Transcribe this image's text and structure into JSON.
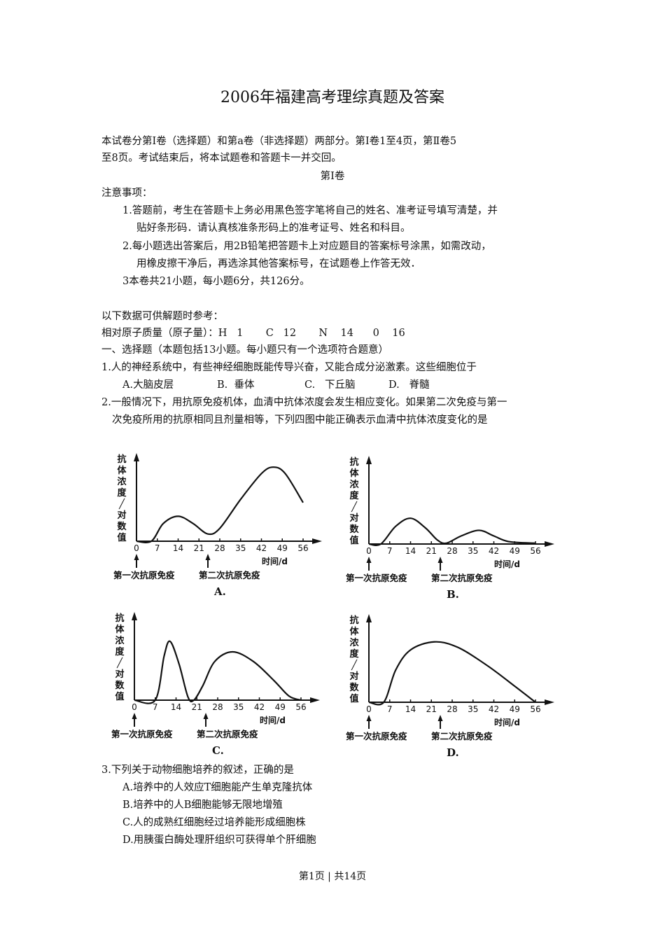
{
  "title": "2006年福建高考理综真题及答案",
  "intro": [
    "本试卷分第Ⅰ卷（选择题）和第a卷（非选择题）两部分。第Ⅰ卷1至4页，第Ⅱ卷5",
    "至8页。考试结束后，将本试题卷和答题卡一并交回。"
  ],
  "section_heading": "第Ⅰ卷",
  "notice_heading": "注意事项：",
  "notices": [
    "1.答题前，考生在答题卡上务必用黑色签字笔将自己的姓名、准考证号填写清楚，并",
    "贴好条形码．请认真核准条形码上的准考证号、姓名和科目。",
    "2.每小题选出答案后，用2B铅笔把答题卡上对应题目的答案标号涂黑，如需改动，",
    "用橡皮擦干净后，再选涂其他答案标号，在试题卷上作答无效．",
    "3本卷共21小题，每小题6分，共126分。"
  ],
  "ref_heading": "以下数据可供解题时参考：",
  "atomic_mass": "相对原子质量（原子量）：H   1       C   12       N    14      0    16",
  "part1_heading": "一、选择题（本题包括13小题。每小题只有一个选项符合题意）",
  "q1": {
    "stem": "1.人的神经系统中，有些神经细胞既能传导兴奋，又能合成分泌激素。这些细胞位于",
    "options": [
      "A.大脑皮层",
      "B.  垂体",
      "C.   下丘脑",
      "D.   脊髓"
    ]
  },
  "q2": {
    "stem": [
      "2.一般情况下，用抗原免疫机体，血清中抗体浓度会发生相应变化。如果第二次免疫与第一",
      "次免疫所用的抗原相同且剂量相等，下列四图中能正确表示血清中抗体浓度变化的是"
    ],
    "charts": [
      {
        "caption": "A.",
        "ylabel": "抗体浓度╱对数值",
        "xlabel": "时间/d",
        "ticks": [
          "0",
          "7",
          "14",
          "21",
          "28",
          "35",
          "42",
          "49",
          "56"
        ],
        "first": "第一次抗原免疫",
        "second": "第二次抗原免疫"
      },
      {
        "caption": "B.",
        "ylabel": "抗体浓度╱对数值",
        "xlabel": "时间/d",
        "ticks": [
          "0",
          "7",
          "14",
          "21",
          "28",
          "35",
          "42",
          "49",
          "56"
        ],
        "first": "第一次抗原免疫",
        "second": "第二次抗原免疫"
      },
      {
        "caption": "C.",
        "ylabel": "抗体浓度╱对数值",
        "xlabel": "时间/d",
        "ticks": [
          "0",
          "7",
          "14",
          "21",
          "28",
          "35",
          "42",
          "49",
          "56"
        ],
        "first": "第一次抗原免疫",
        "second": "第二次抗原免疫"
      },
      {
        "caption": "D.",
        "ylabel": "抗体浓度╱对数值",
        "xlabel": "时间/d",
        "ticks": [
          "0",
          "7",
          "14",
          "21",
          "28",
          "35",
          "42",
          "49",
          "56"
        ],
        "first": "第一次抗原免疫",
        "second": "第二次抗原免疫"
      }
    ]
  },
  "q3": {
    "stem": "3.下列关于动物细胞培养的叙述，正确的是",
    "options": [
      "A.培养中的人效应T细胞能产生单克隆抗体",
      "B.培养中的人B细胞能够无限地增殖",
      "C.人的成熟红细胞经过培养能形成细胞株",
      "D.用胰蛋白酶处理肝组织可获得单个肝细胞"
    ]
  },
  "footer": "第1页 | 共14页"
}
